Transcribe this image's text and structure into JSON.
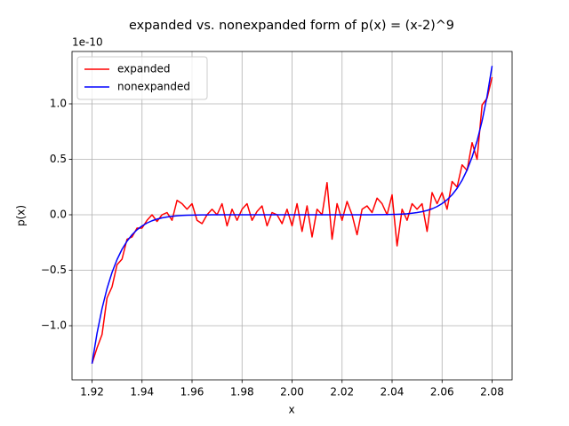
{
  "chart_data": {
    "type": "line",
    "title": "expanded vs. nonexpanded form of p(x) = (x-2)^9",
    "xlabel": "x",
    "ylabel": "p(x)",
    "y_offset_label": "1e-10",
    "x": [
      1.92,
      1.922,
      1.924,
      1.926,
      1.928,
      1.93,
      1.932,
      1.934,
      1.936,
      1.938,
      1.94,
      1.942,
      1.944,
      1.946,
      1.948,
      1.95,
      1.952,
      1.954,
      1.956,
      1.958,
      1.96,
      1.962,
      1.964,
      1.966,
      1.968,
      1.97,
      1.972,
      1.974,
      1.976,
      1.978,
      1.98,
      1.982,
      1.984,
      1.986,
      1.988,
      1.99,
      1.992,
      1.994,
      1.996,
      1.998,
      2.0,
      2.002,
      2.004,
      2.006,
      2.008,
      2.01,
      2.012,
      2.014,
      2.016,
      2.018,
      2.02,
      2.022,
      2.024,
      2.026,
      2.028,
      2.03,
      2.032,
      2.034,
      2.036,
      2.038,
      2.04,
      2.042,
      2.044,
      2.046,
      2.048,
      2.05,
      2.052,
      2.054,
      2.056,
      2.058,
      2.06,
      2.062,
      2.064,
      2.066,
      2.068,
      2.07,
      2.072,
      2.074,
      2.076,
      2.078,
      2.08
    ],
    "series": [
      {
        "name": "expanded",
        "color": "#ff0000",
        "values": [
          -1.34,
          -1.2,
          -1.08,
          -0.75,
          -0.65,
          -0.45,
          -0.4,
          -0.22,
          -0.2,
          -0.12,
          -0.12,
          -0.05,
          0.0,
          -0.06,
          0.0,
          0.02,
          -0.05,
          0.13,
          0.1,
          0.05,
          0.1,
          -0.05,
          -0.08,
          0.0,
          0.05,
          0.0,
          0.1,
          -0.1,
          0.05,
          -0.05,
          0.05,
          0.1,
          -0.05,
          0.03,
          0.08,
          -0.1,
          0.02,
          0.0,
          -0.08,
          0.05,
          -0.1,
          0.1,
          -0.15,
          0.08,
          -0.2,
          0.05,
          0.0,
          0.29,
          -0.22,
          0.1,
          -0.05,
          0.12,
          0.0,
          -0.18,
          0.05,
          0.08,
          0.02,
          0.15,
          0.1,
          0.0,
          0.18,
          -0.28,
          0.05,
          -0.05,
          0.1,
          0.05,
          0.1,
          -0.15,
          0.2,
          0.1,
          0.2,
          0.05,
          0.3,
          0.25,
          0.45,
          0.4,
          0.65,
          0.5,
          0.99,
          1.05,
          1.24
        ]
      },
      {
        "name": "nonexpanded",
        "color": "#0000ff",
        "values": [
          -1.342,
          -1.069,
          -0.846,
          -0.665,
          -0.52,
          -0.404,
          -0.311,
          -0.238,
          -0.18,
          -0.135,
          -0.101,
          -0.074,
          -0.054,
          -0.039,
          -0.028,
          -0.02,
          -0.014,
          -0.009,
          -0.006,
          -0.004,
          -0.003,
          -0.002,
          -0.001,
          -0.001,
          0,
          0,
          0,
          0,
          0,
          0,
          0,
          0,
          0,
          0,
          0,
          0,
          0,
          0,
          0,
          0,
          0,
          0,
          0,
          0,
          0,
          0,
          0,
          0,
          0,
          0,
          0,
          0,
          0,
          0,
          0,
          0,
          0,
          0.001,
          0.001,
          0.002,
          0.003,
          0.004,
          0.006,
          0.009,
          0.014,
          0.02,
          0.028,
          0.039,
          0.054,
          0.074,
          0.101,
          0.135,
          0.18,
          0.238,
          0.311,
          0.404,
          0.52,
          0.665,
          0.846,
          1.069,
          1.342
        ]
      }
    ],
    "xlim": [
      1.912,
      2.088
    ],
    "ylim": [
      -1.488,
      1.472
    ],
    "xticks": [
      1.92,
      1.94,
      1.96,
      1.98,
      {
        "value": 2,
        "label": "2.00"
      },
      2.02,
      2.04,
      2.06,
      2.08
    ],
    "yticks": [
      {
        "value": -1,
        "label": "−1.0"
      },
      {
        "value": -0.5,
        "label": "−0.5"
      },
      {
        "value": 0,
        "label": "0.0"
      },
      {
        "value": 0.5,
        "label": "0.5"
      },
      {
        "value": 1,
        "label": "1.0"
      }
    ],
    "grid": true,
    "legend": "upper left"
  }
}
